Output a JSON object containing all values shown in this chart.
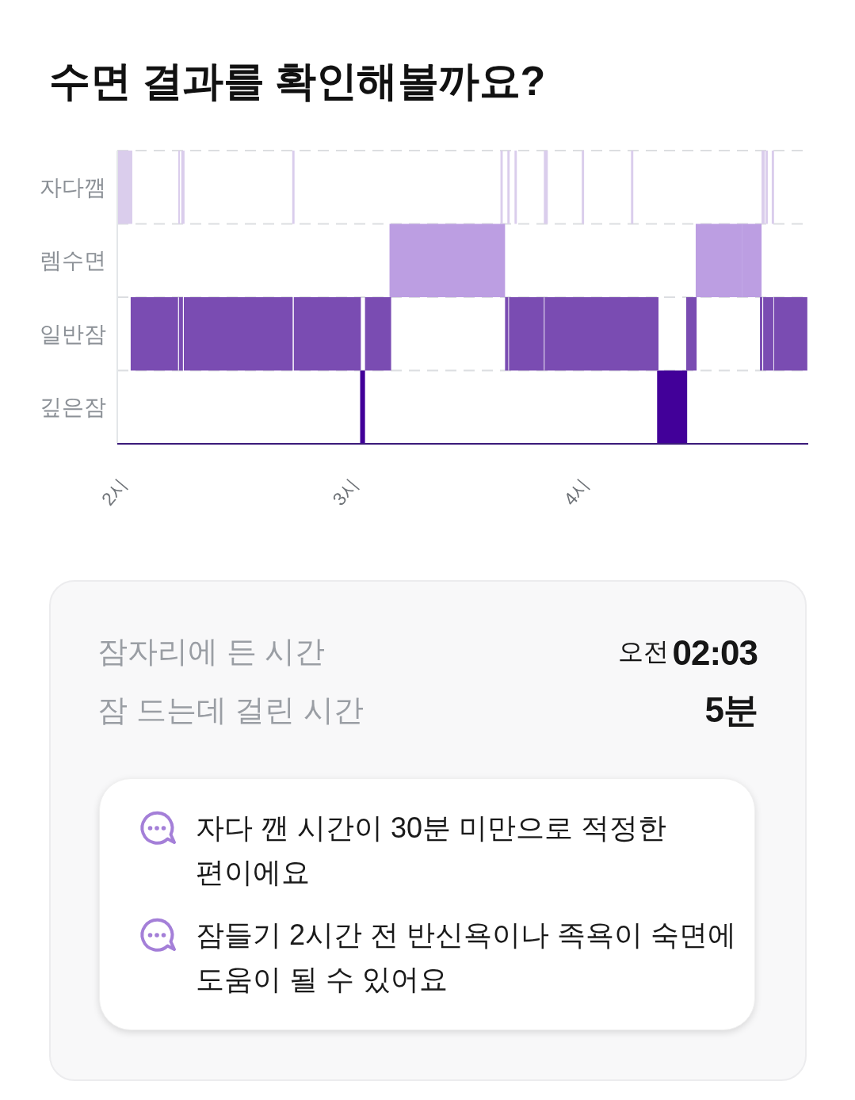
{
  "chart_data": {
    "type": "bar",
    "orientation": "horizontal",
    "title": "수면 결과를 확인해볼까요?",
    "categories": [
      "자다깸",
      "렘수면",
      "일반잠",
      "깊은잠"
    ],
    "xlim": [
      2,
      4.99
    ],
    "xticks": [
      {
        "value": 2,
        "label": "2시"
      },
      {
        "value": 3,
        "label": "3시"
      },
      {
        "value": 4,
        "label": "4시"
      }
    ],
    "grid": "y",
    "series": [
      {
        "values": [
          0.065,
          0.5,
          0.205,
          0.021
        ],
        "base": [
          2.0,
          3.178,
          2.058,
          3.051
        ],
        "colors": [
          "#dacdec",
          "#bc9ee2",
          "#7a4cb2",
          "#420099"
        ]
      },
      {
        "values": [
          0.007,
          0.202,
          0.017,
          0.13
        ],
        "base": [
          2.264,
          4.503,
          2.267,
          4.336
        ],
        "colors": [
          "#dacdec",
          "#bc9ee2",
          "#7a4cb2",
          "#420099"
        ]
      },
      {
        "values": [
          0.014,
          0.083,
          0.471,
          null
        ],
        "base": [
          2.277,
          4.705,
          2.288,
          null
        ],
        "colors": [
          "#dacdec",
          "#bc9ee2",
          "#7a4cb2",
          null
        ]
      },
      {
        "values": [
          0.01,
          null,
          0.29,
          null
        ],
        "base": [
          2.757,
          null,
          2.764,
          null
        ],
        "colors": [
          "#dacdec",
          null,
          "#7a4cb2",
          null
        ]
      },
      {
        "values": [
          0.01,
          null,
          0.113,
          null
        ],
        "base": [
          3.658,
          null,
          3.072,
          null
        ],
        "colors": [
          "#dacdec",
          null,
          "#7a4cb2",
          null
        ]
      },
      {
        "values": [
          0.01,
          null,
          0.014,
          null
        ],
        "base": [
          3.688,
          null,
          3.678,
          null
        ],
        "colors": [
          "#dacdec",
          null,
          "#7a4cb2",
          null
        ]
      },
      {
        "values": [
          0.01,
          null,
          0.151,
          null
        ],
        "base": [
          3.719,
          null,
          3.695,
          null
        ],
        "colors": [
          "#dacdec",
          null,
          "#7a4cb2",
          null
        ]
      },
      {
        "values": [
          0.017,
          null,
          0.493,
          null
        ],
        "base": [
          3.846,
          null,
          3.849,
          null
        ],
        "colors": [
          "#dacdec",
          null,
          "#7a4cb2",
          null
        ]
      },
      {
        "values": [
          0.01,
          null,
          0.045,
          null
        ],
        "base": [
          4.01,
          null,
          4.462,
          null
        ],
        "colors": [
          "#dacdec",
          null,
          "#7a4cb2",
          null
        ]
      },
      {
        "values": [
          0.01,
          null,
          0.01,
          null
        ],
        "base": [
          4.223,
          null,
          4.781,
          null
        ],
        "colors": [
          "#dacdec",
          null,
          "#7a4cb2",
          null
        ]
      },
      {
        "values": [
          0.014,
          null,
          0.044,
          null
        ],
        "base": [
          4.788,
          null,
          4.795,
          null
        ],
        "colors": [
          "#dacdec",
          null,
          "#7a4cb2",
          null
        ]
      },
      {
        "values": [
          0.01,
          null,
          0.144,
          null
        ],
        "base": [
          4.805,
          null,
          4.842,
          null
        ],
        "colors": [
          "#dacdec",
          null,
          "#7a4cb2",
          null
        ]
      },
      {
        "values": [
          0.01,
          null,
          null,
          null
        ],
        "base": [
          4.832,
          null,
          null,
          null
        ],
        "colors": [
          "#dacdec",
          null,
          null,
          null
        ]
      }
    ],
    "annotations": [
      "잠자리에 든 시간",
      "오전",
      "02:03",
      "잠 드는데 걸린 시간",
      "5분",
      "자다 깬 시간이 30분 미만으로 적정한 편이에요",
      "잠들기 2시간 전 반신욕이나 족욕이 숙면에 도움이 될 수 있어요"
    ]
  }
}
